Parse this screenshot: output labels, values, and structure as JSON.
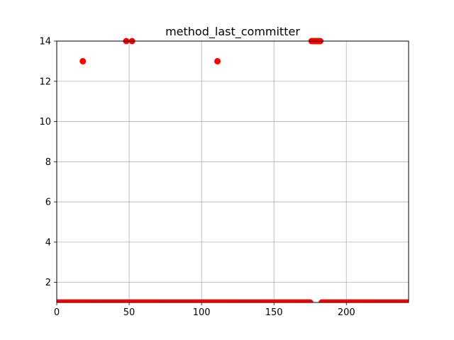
{
  "chart_data": {
    "type": "scatter",
    "title": "method_last_committer",
    "xlabel": "",
    "ylabel": "",
    "xlim": [
      0,
      243
    ],
    "ylim": [
      1,
      14
    ],
    "xticks": [
      0,
      50,
      100,
      150,
      200
    ],
    "yticks": [
      2,
      4,
      6,
      8,
      10,
      12,
      14
    ],
    "grid": true,
    "legend": "none",
    "marker_color": "#ff0000",
    "series": [
      {
        "outliers": [
          {
            "x": 18,
            "y": 13
          },
          {
            "x": 48,
            "y": 14
          },
          {
            "x": 52,
            "y": 14
          },
          {
            "x": 111,
            "y": 13
          },
          {
            "x": 176,
            "y": 14
          },
          {
            "x": 177,
            "y": 14
          },
          {
            "x": 178,
            "y": 14
          },
          {
            "x": 179,
            "y": 14
          },
          {
            "x": 180,
            "y": 14
          },
          {
            "x": 181,
            "y": 14
          },
          {
            "x": 182,
            "y": 14
          }
        ],
        "baseline_value": 1,
        "baseline_x_range": [
          0,
          243
        ],
        "baseline_x_excluded": [
          176,
          177,
          178,
          179,
          180,
          181,
          182
        ]
      }
    ]
  }
}
